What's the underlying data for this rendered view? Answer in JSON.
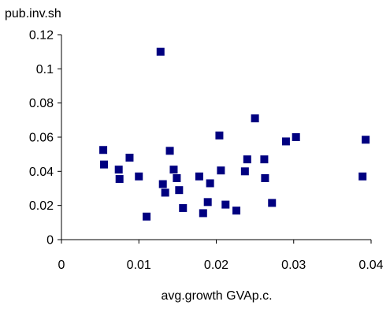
{
  "chart_data": {
    "type": "scatter",
    "title": "",
    "xlabel": "avg.growth GVAp.c.",
    "ylabel": "pub.inv.sh",
    "xlim": [
      0,
      0.04
    ],
    "ylim": [
      0,
      0.12
    ],
    "x_ticks": [
      "0",
      "0.01",
      "0.02",
      "0.03",
      "0.04"
    ],
    "y_ticks": [
      "0",
      "0.02",
      "0.04",
      "0.06",
      "0.08",
      "0.1",
      "0.12"
    ],
    "x_tick_values": [
      0,
      0.01,
      0.02,
      0.03,
      0.04
    ],
    "y_tick_values": [
      0,
      0.02,
      0.04,
      0.06,
      0.08,
      0.1,
      0.12
    ],
    "grid": false,
    "legend": "none",
    "marker": "square",
    "marker_color": "#000080",
    "series": [
      {
        "points": [
          {
            "x": 0.0054,
            "y": 0.0525
          },
          {
            "x": 0.0055,
            "y": 0.044
          },
          {
            "x": 0.0074,
            "y": 0.041
          },
          {
            "x": 0.0075,
            "y": 0.0355
          },
          {
            "x": 0.0088,
            "y": 0.048
          },
          {
            "x": 0.01,
            "y": 0.037
          },
          {
            "x": 0.011,
            "y": 0.0135
          },
          {
            "x": 0.0128,
            "y": 0.11
          },
          {
            "x": 0.0131,
            "y": 0.0325
          },
          {
            "x": 0.0134,
            "y": 0.0275
          },
          {
            "x": 0.014,
            "y": 0.052
          },
          {
            "x": 0.0145,
            "y": 0.041
          },
          {
            "x": 0.0149,
            "y": 0.036
          },
          {
            "x": 0.0152,
            "y": 0.029
          },
          {
            "x": 0.0157,
            "y": 0.0185
          },
          {
            "x": 0.0178,
            "y": 0.037
          },
          {
            "x": 0.0183,
            "y": 0.0155
          },
          {
            "x": 0.0189,
            "y": 0.022
          },
          {
            "x": 0.0192,
            "y": 0.033
          },
          {
            "x": 0.0204,
            "y": 0.061
          },
          {
            "x": 0.0206,
            "y": 0.0405
          },
          {
            "x": 0.0212,
            "y": 0.0205
          },
          {
            "x": 0.0226,
            "y": 0.017
          },
          {
            "x": 0.0237,
            "y": 0.04
          },
          {
            "x": 0.024,
            "y": 0.047
          },
          {
            "x": 0.025,
            "y": 0.071
          },
          {
            "x": 0.0262,
            "y": 0.047
          },
          {
            "x": 0.0263,
            "y": 0.036
          },
          {
            "x": 0.0272,
            "y": 0.0215
          },
          {
            "x": 0.029,
            "y": 0.0575
          },
          {
            "x": 0.0303,
            "y": 0.06
          },
          {
            "x": 0.0389,
            "y": 0.037
          },
          {
            "x": 0.0393,
            "y": 0.0585
          }
        ]
      }
    ]
  }
}
